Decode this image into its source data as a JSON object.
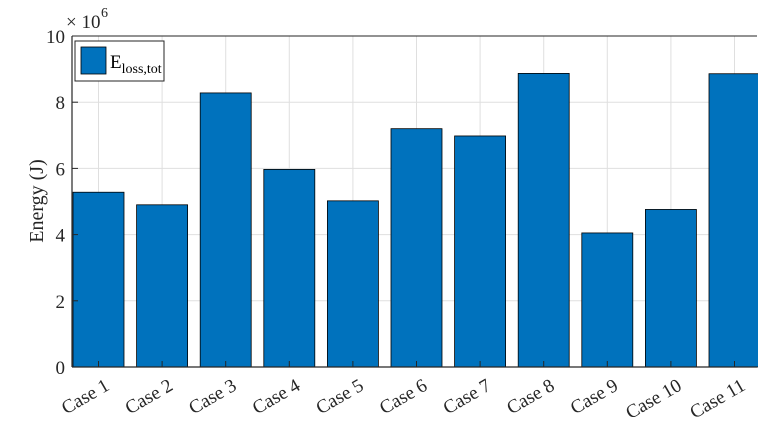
{
  "chart_data": {
    "type": "bar",
    "categories": [
      "Case 1",
      "Case 2",
      "Case 3",
      "Case 4",
      "Case 5",
      "Case 6",
      "Case 7",
      "Case 8",
      "Case 9",
      "Case 10",
      "Case 11"
    ],
    "series": [
      {
        "name": "E_{loss,tot}",
        "values": [
          5.28,
          4.9,
          8.28,
          5.97,
          5.02,
          7.2,
          6.98,
          8.87,
          4.05,
          4.76,
          8.86
        ]
      }
    ],
    "values": [
      5.28,
      4.9,
      8.28,
      5.97,
      5.02,
      7.2,
      6.98,
      8.87,
      4.05,
      4.76,
      8.86
    ],
    "ylabel": "Energy (J)",
    "xlabel": "",
    "ylim": [
      0,
      10
    ],
    "yticks": [
      0,
      2,
      4,
      6,
      8,
      10
    ],
    "y_multiplier": "× 10",
    "y_multiplier_exponent": "6",
    "grid": true,
    "legend": {
      "main": "E",
      "subscript": "loss,tot",
      "placement": "top-left"
    },
    "bar_color": "#0072BD",
    "bar_edge_color": "#000000"
  }
}
